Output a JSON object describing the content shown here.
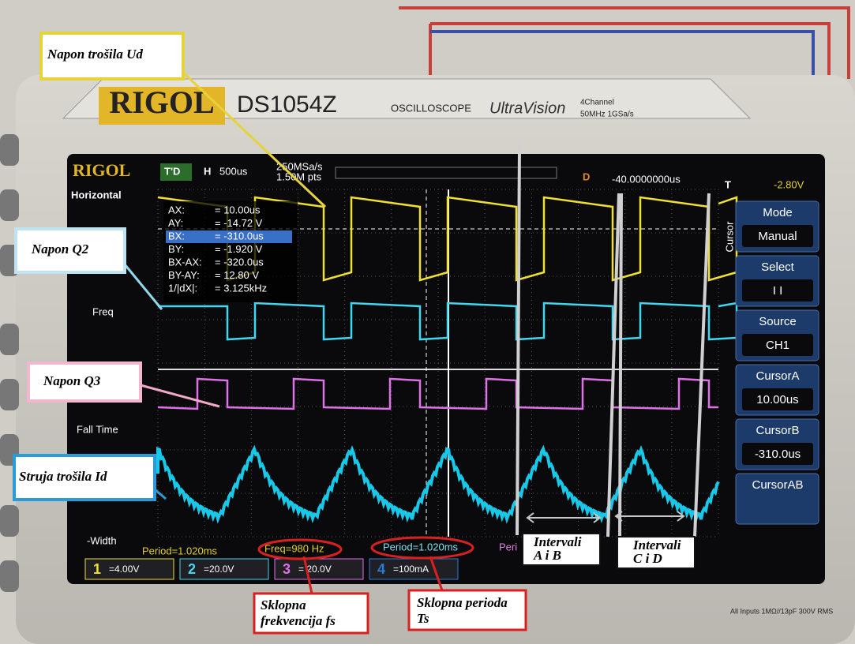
{
  "labels": {
    "load_voltage": "Napon trošila Ud",
    "q2": "Napon Q2",
    "q3": "Napon Q3",
    "load_current": "Struja trošila Id",
    "intervals_ab": [
      "Intervali",
      "A i B"
    ],
    "intervals_cd": [
      "Intervali",
      "C i D"
    ],
    "switching_freq": [
      "Sklopna",
      "frekvencija fs"
    ],
    "switching_period": [
      "Sklopna perioda",
      "Ts"
    ]
  },
  "bezel": {
    "brand": "RIGOL",
    "model": "DS1054Z",
    "kind": "OSCILLOSCOPE",
    "series": "UltraVision",
    "channels": "4Channel",
    "spec": "50MHz 1GSa/s",
    "inputs": "All Inputs 1MΩ//13pF 300V RMS"
  },
  "screen": {
    "brand": "RIGOL",
    "trigger_state": "T'D",
    "timebase_label": "H",
    "timebase": "500us",
    "sample_rate": "250MSa/s",
    "memory": "1.50M pts",
    "delay_label": "D",
    "delay": "-40.0000000us",
    "trigger_label": "T",
    "trigger_level": "-2.80V",
    "left_menu": [
      "Horizontal",
      "Freq",
      "Fall Time",
      "-Width"
    ],
    "cursor_readout": [
      [
        "AX:",
        "= 10.00us"
      ],
      [
        "AY:",
        "= -14.72 V"
      ],
      [
        "BX:",
        "= -310.0us"
      ],
      [
        "BY:",
        "= -1.920 V"
      ],
      [
        "BX-AX:",
        "= -320.0us"
      ],
      [
        "BY-AY:",
        "= 12.80 V"
      ],
      [
        "1/|dX|:",
        "= 3.125kHz"
      ]
    ],
    "right_menu": {
      "side": "Cursor",
      "items": [
        {
          "title": "Mode",
          "value": "Manual"
        },
        {
          "title": "Select",
          "value": "I I"
        },
        {
          "title": "Source",
          "value": "CH1"
        },
        {
          "title": "CursorA",
          "value": "10.00us"
        },
        {
          "title": "CursorB",
          "value": "-310.0us"
        },
        {
          "title": "CursorAB"
        }
      ]
    },
    "measurements": [
      "Period=1.020ms",
      "Freq=980 Hz",
      "Period=1.020ms",
      "Peri"
    ],
    "channels": [
      {
        "number": "1",
        "scale": "=4.00V"
      },
      {
        "number": "2",
        "scale": "=20.0V"
      },
      {
        "number": "3",
        "scale": "= 20.0V"
      },
      {
        "number": "4",
        "scale": "=100mA"
      }
    ]
  }
}
